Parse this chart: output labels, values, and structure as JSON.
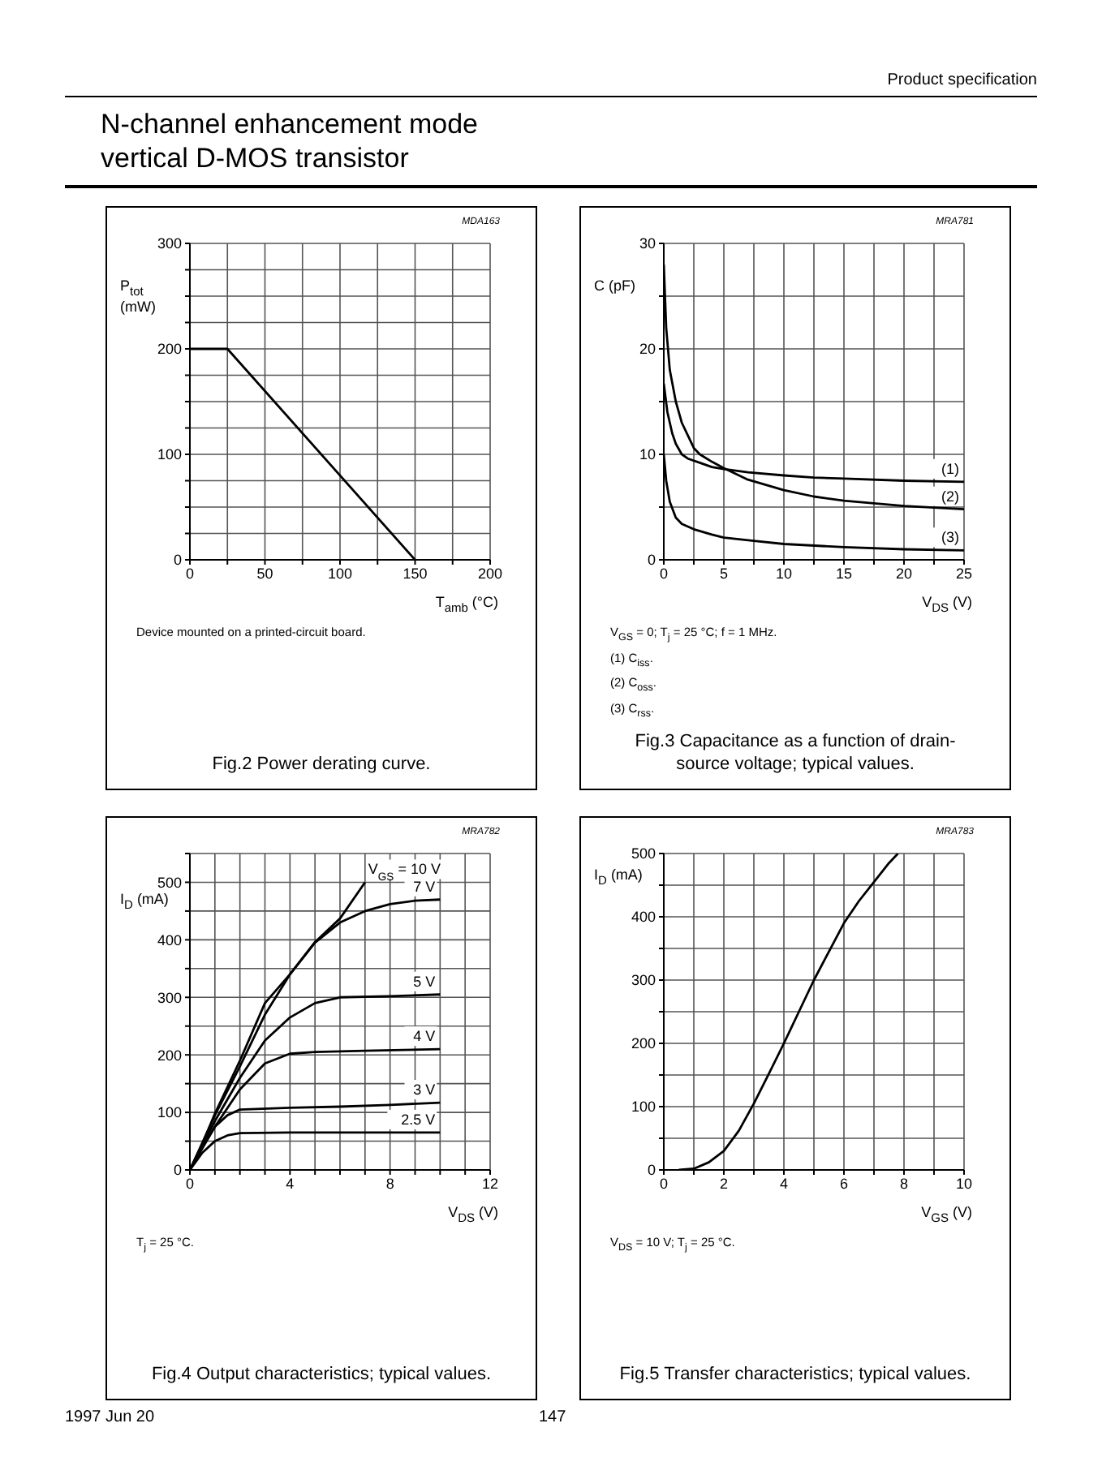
{
  "chart_data": [
    {
      "type": "other",
      "title": "N-channel enhancement mode vertical D-MOS transistor",
      "annotations": [
        "Product specification",
        "1997 Jun 20",
        "147"
      ]
    },
    {
      "type": "line",
      "title": "Fig.2  Power derating curve.",
      "xlabel": "T$_{amb}$ (°C)",
      "ylabel": "P$_{tot}$ (mW)",
      "grid": true,
      "xlim": [
        0,
        200
      ],
      "ylim": [
        0,
        300
      ],
      "xticks": [
        0,
        {
          "value": 25,
          "label": null
        },
        50,
        {
          "value": 75,
          "label": null
        },
        100,
        {
          "value": 125,
          "label": null
        },
        150,
        {
          "value": 175,
          "label": null
        },
        200
      ],
      "yticks": [
        0,
        {
          "value": 25,
          "label": null
        },
        {
          "value": 50,
          "label": null
        },
        {
          "value": 75,
          "label": null
        },
        100,
        {
          "value": 125,
          "label": null
        },
        {
          "value": 150,
          "label": null
        },
        {
          "value": 175,
          "label": null
        },
        200,
        {
          "value": 225,
          "label": null
        },
        {
          "value": 250,
          "label": null
        },
        {
          "value": 275,
          "label": null
        },
        300
      ],
      "series": [
        {
          "color": "#000000",
          "x": [
            0,
            25,
            150
          ],
          "values": [
            200,
            200,
            0
          ]
        }
      ],
      "annotations": [
        "MDA163",
        "Device mounted on a printed-circuit board."
      ]
    },
    {
      "type": "line",
      "title": "Fig.3  Capacitance as a function of drain-source voltage; typical values.",
      "xlabel": "V$_{DS}$ (V)",
      "ylabel": "C (pF)",
      "grid": true,
      "xlim": [
        0,
        25
      ],
      "ylim": [
        0,
        30
      ],
      "xticks": [
        0,
        {
          "value": 2.5,
          "label": null
        },
        5,
        {
          "value": 7.5,
          "label": null
        },
        10,
        {
          "value": 12.5,
          "label": null
        },
        15,
        {
          "value": 17.5,
          "label": null
        },
        20,
        {
          "value": 22.5,
          "label": null
        },
        25
      ],
      "yticks": [
        0,
        {
          "value": 5,
          "label": null
        },
        10,
        {
          "value": 15,
          "label": null
        },
        20,
        {
          "value": 25,
          "label": null
        },
        30
      ],
      "series": [
        {
          "name": "(1)",
          "color": "#000000",
          "x": [
            0,
            0.3,
            0.7,
            1,
            1.5,
            2,
            3,
            4,
            5,
            7,
            10,
            12.5,
            15,
            20,
            25
          ],
          "values": [
            16.7,
            14,
            12,
            11,
            10,
            9.6,
            9.2,
            8.8,
            8.6,
            8.3,
            8,
            7.8,
            7.7,
            7.5,
            7.4
          ]
        },
        {
          "name": "(2)",
          "color": "#000000",
          "x": [
            0,
            0.2,
            0.5,
            1,
            1.5,
            2,
            2.5,
            3,
            4,
            5,
            7,
            10,
            12.5,
            15,
            20,
            25
          ],
          "values": [
            28,
            22,
            18,
            15,
            13,
            11.8,
            10.6,
            10,
            9.3,
            8.7,
            7.6,
            6.6,
            6,
            5.6,
            5.1,
            4.8
          ]
        },
        {
          "name": "(3)",
          "color": "#000000",
          "x": [
            0,
            0.2,
            0.5,
            1,
            1.5,
            2.5,
            4,
            5,
            7.5,
            10,
            15,
            20,
            25
          ],
          "values": [
            10,
            7.5,
            5.5,
            4,
            3.4,
            2.9,
            2.4,
            2.1,
            1.8,
            1.5,
            1.2,
            1,
            0.9
          ]
        }
      ],
      "annotations": [
        "MRA781",
        "V$_{GS}$ = 0; T$_{j}$ = 25 °C; f = 1 MHz.",
        "(1)  C$_{iss}$.",
        "(2)  C$_{oss}$.",
        "(3)  C$_{rss}$."
      ]
    },
    {
      "type": "line",
      "title": "Fig.4  Output characteristics; typical values.",
      "xlabel": "V$_{DS}$ (V)",
      "ylabel": "I$_{D}$ (mA)",
      "grid": true,
      "xlim": [
        0,
        12
      ],
      "ylim": [
        0,
        550
      ],
      "xticks": [
        0,
        {
          "value": 1,
          "label": null
        },
        {
          "value": 2,
          "label": null
        },
        {
          "value": 3,
          "label": null
        },
        4,
        {
          "value": 5,
          "label": null
        },
        {
          "value": 6,
          "label": null
        },
        {
          "value": 7,
          "label": null
        },
        8,
        {
          "value": 9,
          "label": null
        },
        {
          "value": 10,
          "label": null
        },
        {
          "value": 11,
          "label": null
        },
        12
      ],
      "yticks": [
        0,
        {
          "value": 50,
          "label": null
        },
        100,
        {
          "value": 150,
          "label": null
        },
        200,
        {
          "value": 250,
          "label": null
        },
        300,
        {
          "value": 350,
          "label": null
        },
        400,
        {
          "value": 450,
          "label": null
        },
        500,
        {
          "value": 550,
          "label": null
        }
      ],
      "series": [
        {
          "name": "V$_{GS}$ = 10 V",
          "color": "#000000",
          "x": [
            0,
            0.5,
            1,
            2,
            3,
            4,
            5,
            6,
            7
          ],
          "values": [
            0,
            45,
            98,
            190,
            290,
            340,
            396,
            437,
            500
          ]
        },
        {
          "name": "7 V",
          "color": "#000000",
          "x": [
            0,
            1,
            2,
            3,
            4,
            5,
            6,
            7,
            8,
            9,
            10
          ],
          "values": [
            0,
            95,
            180,
            270,
            340,
            395,
            430,
            450,
            462,
            468,
            470
          ]
        },
        {
          "name": "5 V",
          "color": "#000000",
          "x": [
            0,
            1,
            2,
            3,
            4,
            5,
            6,
            8,
            10
          ],
          "values": [
            0,
            85,
            160,
            225,
            265,
            290,
            300,
            302,
            305
          ]
        },
        {
          "name": "4 V",
          "color": "#000000",
          "x": [
            0,
            1,
            2,
            3,
            4,
            5,
            7,
            10
          ],
          "values": [
            0,
            75,
            140,
            185,
            202,
            205,
            207,
            210
          ]
        },
        {
          "name": "3 V",
          "color": "#000000",
          "x": [
            0,
            0.5,
            1,
            1.5,
            2,
            4,
            6,
            8,
            10
          ],
          "values": [
            0,
            40,
            75,
            95,
            105,
            108,
            110,
            113,
            117
          ]
        },
        {
          "name": "2.5 V",
          "color": "#000000",
          "x": [
            0,
            0.5,
            1,
            1.5,
            2,
            4,
            10
          ],
          "values": [
            0,
            30,
            50,
            60,
            64,
            65,
            65
          ]
        }
      ],
      "annotations": [
        "MRA782",
        "T$_{j}$ = 25 °C."
      ]
    },
    {
      "type": "line",
      "title": "Fig.5  Transfer characteristics; typical values.",
      "xlabel": "V$_{GS}$ (V)",
      "ylabel": "I$_{D}$ (mA)",
      "grid": true,
      "xlim": [
        0,
        10
      ],
      "ylim": [
        0,
        500
      ],
      "xticks": [
        0,
        {
          "value": 1,
          "label": null
        },
        2,
        {
          "value": 3,
          "label": null
        },
        4,
        {
          "value": 5,
          "label": null
        },
        6,
        {
          "value": 7,
          "label": null
        },
        8,
        {
          "value": 9,
          "label": null
        },
        10
      ],
      "yticks": [
        0,
        {
          "value": 50,
          "label": null
        },
        100,
        {
          "value": 150,
          "label": null
        },
        200,
        {
          "value": 250,
          "label": null
        },
        300,
        {
          "value": 350,
          "label": null
        },
        400,
        {
          "value": 450,
          "label": null
        },
        500
      ],
      "series": [
        {
          "color": "#000000",
          "x": [
            0.5,
            1,
            1.5,
            2,
            2.5,
            3,
            3.5,
            4,
            4.5,
            5,
            5.5,
            6,
            6.5,
            7,
            7.5,
            7.8
          ],
          "values": [
            0,
            2,
            12,
            30,
            62,
            105,
            152,
            200,
            250,
            300,
            345,
            390,
            425,
            455,
            485,
            500
          ]
        }
      ],
      "annotations": [
        "MRA783",
        "V$_{DS}$ = 10 V; T$_{j}$ = 25 °C."
      ]
    }
  ]
}
